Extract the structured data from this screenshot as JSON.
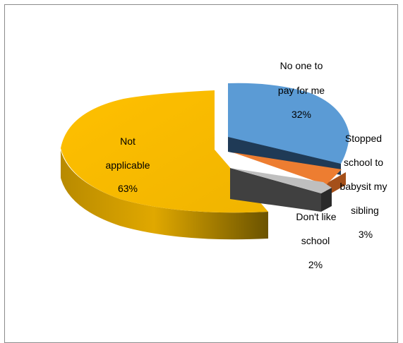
{
  "chart_data": {
    "type": "pie",
    "title": "",
    "slices": [
      {
        "label_lines": [
          "No one to",
          "pay for me",
          "32%"
        ],
        "value": 32,
        "color": "#5B9BD5"
      },
      {
        "label_lines": [
          "Stopped",
          "school to",
          "babysit my",
          "sibling",
          "3%"
        ],
        "value": 3,
        "color": "#ED7D31"
      },
      {
        "label_lines": [
          "Don't like",
          "school",
          "2%"
        ],
        "value": 2,
        "color": "#A5A5A5"
      },
      {
        "label_lines": [
          "Not",
          "applicable",
          "63%"
        ],
        "value": 63,
        "color": "#FFC000"
      }
    ]
  }
}
